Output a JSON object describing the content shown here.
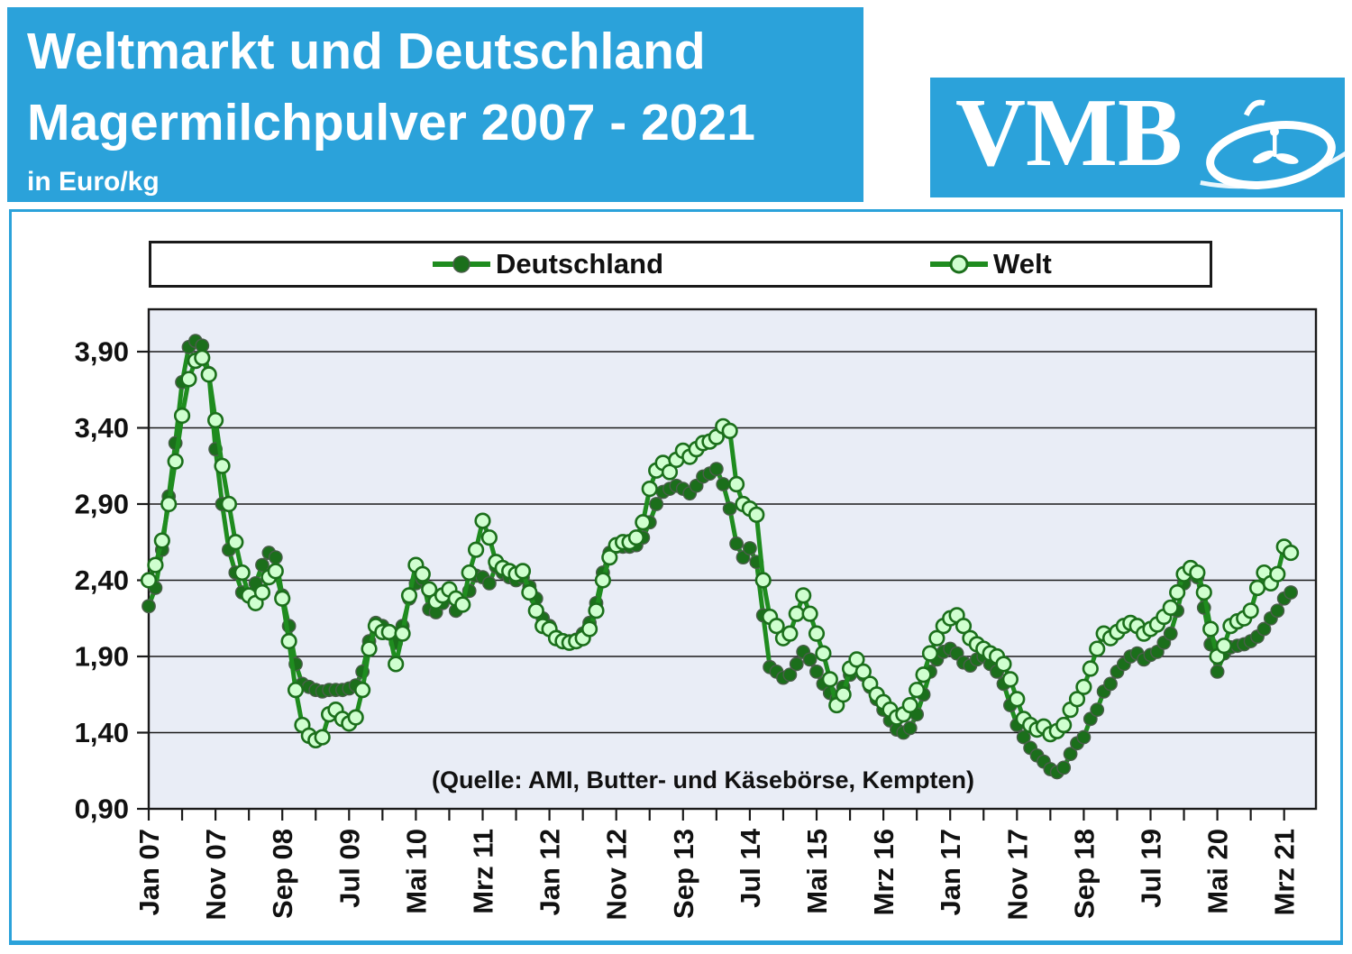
{
  "header": {
    "title_line1": "Weltmarkt und Deutschland",
    "title_line2": "Magermilchpulver 2007 - 2021",
    "unit_label": "in Euro/kg",
    "logo_text": "VMB"
  },
  "colors": {
    "brand_blue": "#2BA2DA",
    "plot_background": "#E9EDF6",
    "series_green": "#1F8C1F",
    "deutschland_marker_fill": "#1B6F1B",
    "welt_marker_fill": "#CFFFCF",
    "grid_black": "#1a1a1a"
  },
  "legend": {
    "items": [
      {
        "label": "Deutschland",
        "marker": "filled-circle"
      },
      {
        "label": "Welt",
        "marker": "open-circle"
      }
    ]
  },
  "source_note": "(Quelle: AMI, Butter- und Käsebörse, Kempten)",
  "chart_data": {
    "type": "line",
    "title": "Weltmarkt und Deutschland Magermilchpulver 2007 - 2021",
    "ylabel": "Euro/kg",
    "ylim": [
      0.9,
      4.25
    ],
    "grid": "horizontal",
    "legend_position": "top-center",
    "x_unit": "month",
    "x_start": "Jan 2007",
    "x_end": "Apr 2021",
    "x_tick_labels": [
      "Jan 07",
      "Nov 07",
      "Sep 08",
      "Jul 09",
      "Mai 10",
      "Mrz 11",
      "Jan 12",
      "Nov 12",
      "Sep 13",
      "Jul 14",
      "Mai 15",
      "Mrz 16",
      "Jan 17",
      "Nov 17",
      "Sep 18",
      "Jul 19",
      "Mai 20",
      "Mrz 21"
    ],
    "x_tick_month_indices": [
      0,
      10,
      20,
      30,
      40,
      50,
      60,
      70,
      80,
      90,
      100,
      110,
      120,
      130,
      140,
      150,
      160,
      170
    ],
    "y_tick_labels": [
      "3,90",
      "3,40",
      "2,90",
      "2,40",
      "1,90",
      "1,40",
      "0,90"
    ],
    "y_tick_values": [
      3.9,
      3.4,
      2.9,
      2.4,
      1.9,
      1.4,
      0.9
    ],
    "series": [
      {
        "name": "Deutschland",
        "style": "dark-filled-markers",
        "values": [
          2.23,
          2.35,
          2.6,
          2.95,
          3.3,
          3.7,
          3.93,
          3.97,
          3.94,
          3.76,
          3.26,
          2.9,
          2.6,
          2.45,
          2.32,
          2.3,
          2.38,
          2.5,
          2.58,
          2.55,
          2.3,
          2.1,
          1.85,
          1.72,
          1.7,
          1.68,
          1.67,
          1.68,
          1.68,
          1.68,
          1.69,
          1.71,
          1.8,
          2.0,
          2.12,
          2.1,
          2.05,
          1.99,
          2.1,
          2.28,
          2.38,
          2.41,
          2.21,
          2.19,
          2.25,
          2.31,
          2.2,
          2.25,
          2.33,
          2.43,
          2.42,
          2.38,
          2.49,
          2.45,
          2.42,
          2.4,
          2.42,
          2.36,
          2.28,
          2.15,
          2.1,
          2.03,
          2.0,
          2.0,
          2.01,
          2.05,
          2.12,
          2.25,
          2.45,
          2.58,
          2.62,
          2.62,
          2.62,
          2.63,
          2.68,
          2.78,
          2.9,
          2.98,
          3.0,
          3.02,
          3.0,
          2.97,
          3.02,
          3.08,
          3.1,
          3.13,
          3.03,
          2.87,
          2.64,
          2.55,
          2.61,
          2.52,
          2.17,
          1.83,
          1.8,
          1.76,
          1.78,
          1.85,
          1.93,
          1.88,
          1.8,
          1.72,
          1.66,
          1.62,
          1.7,
          1.78,
          1.82,
          1.78,
          1.7,
          1.62,
          1.55,
          1.48,
          1.42,
          1.4,
          1.43,
          1.52,
          1.65,
          1.8,
          1.88,
          1.93,
          1.95,
          1.92,
          1.86,
          1.84,
          1.88,
          1.9,
          1.85,
          1.8,
          1.72,
          1.58,
          1.45,
          1.37,
          1.3,
          1.25,
          1.21,
          1.16,
          1.14,
          1.17,
          1.26,
          1.33,
          1.37,
          1.49,
          1.55,
          1.67,
          1.72,
          1.8,
          1.85,
          1.9,
          1.92,
          1.88,
          1.91,
          1.93,
          1.99,
          2.05,
          2.2,
          2.38,
          2.44,
          2.42,
          2.22,
          1.98,
          1.8,
          1.92,
          1.96,
          1.97,
          1.98,
          2.0,
          2.03,
          2.08,
          2.15,
          2.2,
          2.28,
          2.32
        ]
      },
      {
        "name": "Welt",
        "style": "light-open-markers",
        "values": [
          2.4,
          2.5,
          2.66,
          2.9,
          3.18,
          3.48,
          3.72,
          3.84,
          3.86,
          3.75,
          3.45,
          3.15,
          2.9,
          2.65,
          2.45,
          2.3,
          2.25,
          2.32,
          2.42,
          2.46,
          2.28,
          2.0,
          1.68,
          1.45,
          1.38,
          1.35,
          1.37,
          1.52,
          1.55,
          1.49,
          1.46,
          1.5,
          1.68,
          1.95,
          2.1,
          2.06,
          2.06,
          1.85,
          2.05,
          2.3,
          2.5,
          2.44,
          2.34,
          2.26,
          2.3,
          2.34,
          2.28,
          2.24,
          2.45,
          2.6,
          2.79,
          2.68,
          2.52,
          2.48,
          2.46,
          2.44,
          2.46,
          2.32,
          2.2,
          2.1,
          2.08,
          2.02,
          2.0,
          1.99,
          2.0,
          2.02,
          2.08,
          2.2,
          2.4,
          2.55,
          2.63,
          2.65,
          2.65,
          2.68,
          2.78,
          3.0,
          3.12,
          3.17,
          3.11,
          3.19,
          3.25,
          3.21,
          3.26,
          3.3,
          3.31,
          3.34,
          3.41,
          3.38,
          3.03,
          2.9,
          2.87,
          2.83,
          2.4,
          2.16,
          2.1,
          2.02,
          2.05,
          2.18,
          2.3,
          2.18,
          2.05,
          1.92,
          1.75,
          1.58,
          1.65,
          1.82,
          1.88,
          1.8,
          1.72,
          1.65,
          1.6,
          1.55,
          1.5,
          1.52,
          1.58,
          1.68,
          1.78,
          1.92,
          2.02,
          2.1,
          2.15,
          2.17,
          2.1,
          2.02,
          1.98,
          1.95,
          1.92,
          1.9,
          1.85,
          1.75,
          1.62,
          1.49,
          1.45,
          1.42,
          1.44,
          1.39,
          1.41,
          1.45,
          1.55,
          1.62,
          1.7,
          1.82,
          1.95,
          2.05,
          2.02,
          2.06,
          2.1,
          2.12,
          2.1,
          2.05,
          2.08,
          2.11,
          2.16,
          2.22,
          2.32,
          2.44,
          2.48,
          2.45,
          2.32,
          2.08,
          1.9,
          1.97,
          2.1,
          2.13,
          2.15,
          2.2,
          2.35,
          2.45,
          2.38,
          2.44,
          2.62,
          2.58
        ]
      }
    ]
  }
}
